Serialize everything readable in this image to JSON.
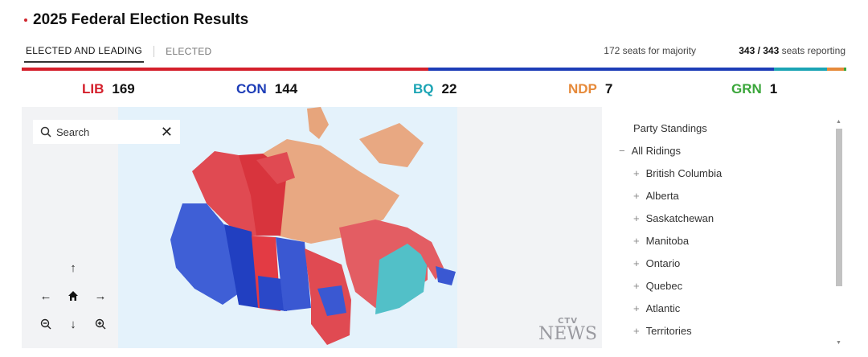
{
  "title": "2025 Federal Election Results",
  "tabs": [
    {
      "label": "ELECTED AND LEADING",
      "active": true
    },
    {
      "label": "ELECTED",
      "active": false
    }
  ],
  "majority_text": "172 seats for majority",
  "reporting": {
    "count": "343 / 343",
    "suffix": "seats reporting"
  },
  "seat_total": 343,
  "parties": [
    {
      "abbr": "LIB",
      "seats": 169,
      "color": "#d41f2b"
    },
    {
      "abbr": "CON",
      "seats": 144,
      "color": "#1d3db7"
    },
    {
      "abbr": "BQ",
      "seats": 22,
      "color": "#1ba4b4"
    },
    {
      "abbr": "NDP",
      "seats": 7,
      "color": "#e68a3a"
    },
    {
      "abbr": "GRN",
      "seats": 1,
      "color": "#3aa63a"
    }
  ],
  "search": {
    "placeholder": "Search",
    "icon": "search-icon",
    "close_icon": "close-icon"
  },
  "map_controls": [
    {
      "name": "pan-up-button",
      "glyph": "↑"
    },
    {
      "name": "pan-left-button",
      "glyph": "←"
    },
    {
      "name": "home-button",
      "glyph": "⌂"
    },
    {
      "name": "pan-right-button",
      "glyph": "→"
    },
    {
      "name": "zoom-out-button",
      "glyph": "⊖"
    },
    {
      "name": "pan-down-button",
      "glyph": "↓"
    },
    {
      "name": "zoom-in-button",
      "glyph": "⊕"
    }
  ],
  "watermark": {
    "line1": "CTV",
    "line2": "NEWS"
  },
  "panel": {
    "heading": "Party Standings",
    "all": {
      "label": "All Ridings",
      "toggle": "−"
    },
    "regions": [
      {
        "label": "British Columbia",
        "toggle": "+"
      },
      {
        "label": "Alberta",
        "toggle": "+"
      },
      {
        "label": "Saskatchewan",
        "toggle": "+"
      },
      {
        "label": "Manitoba",
        "toggle": "+"
      },
      {
        "label": "Ontario",
        "toggle": "+"
      },
      {
        "label": "Quebec",
        "toggle": "+"
      },
      {
        "label": "Atlantic",
        "toggle": "+"
      },
      {
        "label": "Territories",
        "toggle": "+"
      }
    ]
  }
}
